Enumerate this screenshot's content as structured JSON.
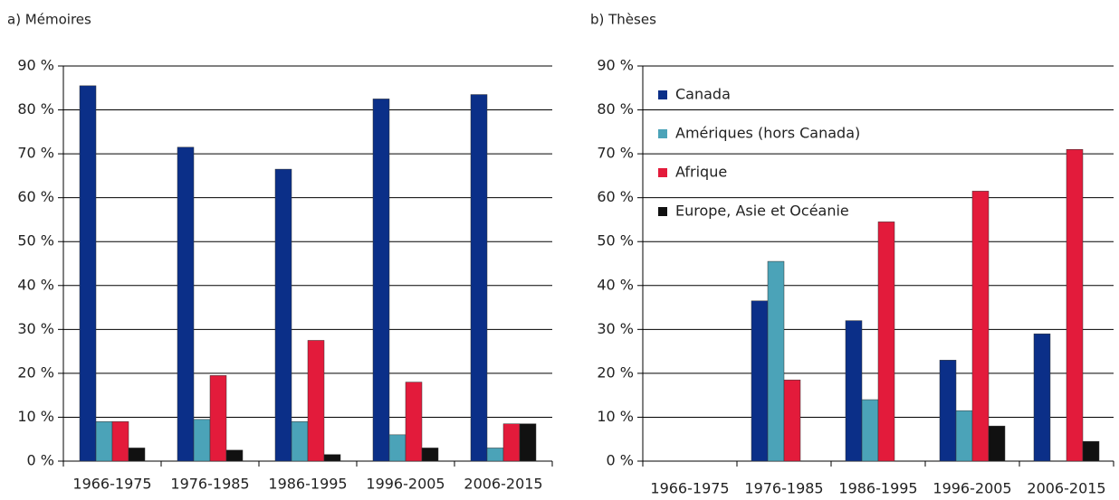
{
  "chart_data": [
    {
      "type": "bar",
      "title": "a) Mémoires",
      "categories": [
        "1966-1975",
        "1976-1985",
        "1986-1995",
        "1996-2005",
        "2006-2015"
      ],
      "series": [
        {
          "color": "#0b2f88",
          "values": [
            85.5,
            71.5,
            66.5,
            82.5,
            83.5
          ]
        },
        {
          "color": "#4ba3b8",
          "values": [
            9,
            9.5,
            9,
            6,
            3
          ]
        },
        {
          "color": "#e31b3b",
          "values": [
            9,
            19.5,
            27.5,
            18,
            8.5
          ]
        },
        {
          "color": "#111111",
          "values": [
            3,
            2.5,
            1.5,
            3,
            8.5
          ]
        }
      ],
      "ylim": [
        0,
        90
      ],
      "yticks": [
        {
          "value": 0,
          "label": "0 %"
        },
        {
          "value": 10,
          "label": "10 %"
        },
        {
          "value": 20,
          "label": "20 %"
        },
        {
          "value": 30,
          "label": "30 %"
        },
        {
          "value": 40,
          "label": "40 %"
        },
        {
          "value": 50,
          "label": "50 %"
        },
        {
          "value": 60,
          "label": "60 %"
        },
        {
          "value": 70,
          "label": "70 %"
        },
        {
          "value": 80,
          "label": "80 %"
        },
        {
          "value": 90,
          "label": "90 %"
        }
      ],
      "grid": true
    },
    {
      "type": "bar",
      "title": "b) Thèses",
      "categories": [
        "1966-1975",
        "1976-1985",
        "1986-1995",
        "1996-2005",
        "2006-2015"
      ],
      "series": [
        {
          "name": "Canada",
          "color": "#0b2f88",
          "values": [
            0,
            36.5,
            32,
            23,
            29
          ]
        },
        {
          "name": "Amériques (hors Canada)",
          "color": "#4ba3b8",
          "values": [
            0,
            45.5,
            14,
            11.5,
            0
          ]
        },
        {
          "name": "Afrique",
          "color": "#e31b3b",
          "values": [
            0,
            18.5,
            54.5,
            61.5,
            71
          ]
        },
        {
          "name": "Europe, Asie et Océanie",
          "color": "#111111",
          "values": [
            0,
            0,
            0,
            8,
            4.5
          ]
        }
      ],
      "ylim": [
        0,
        90
      ],
      "yticks": [
        {
          "value": 0,
          "label": "0 %"
        },
        {
          "value": 10,
          "label": "10 %"
        },
        {
          "value": 20,
          "label": "20 %"
        },
        {
          "value": 30,
          "label": "30 %"
        },
        {
          "value": 40,
          "label": "40 %"
        },
        {
          "value": 50,
          "label": "50 %"
        },
        {
          "value": 60,
          "label": "60 %"
        },
        {
          "value": 70,
          "label": "70 %"
        },
        {
          "value": 80,
          "label": "80 %"
        },
        {
          "value": 90,
          "label": "90 %"
        }
      ],
      "grid": true,
      "legend": "upper left"
    }
  ]
}
